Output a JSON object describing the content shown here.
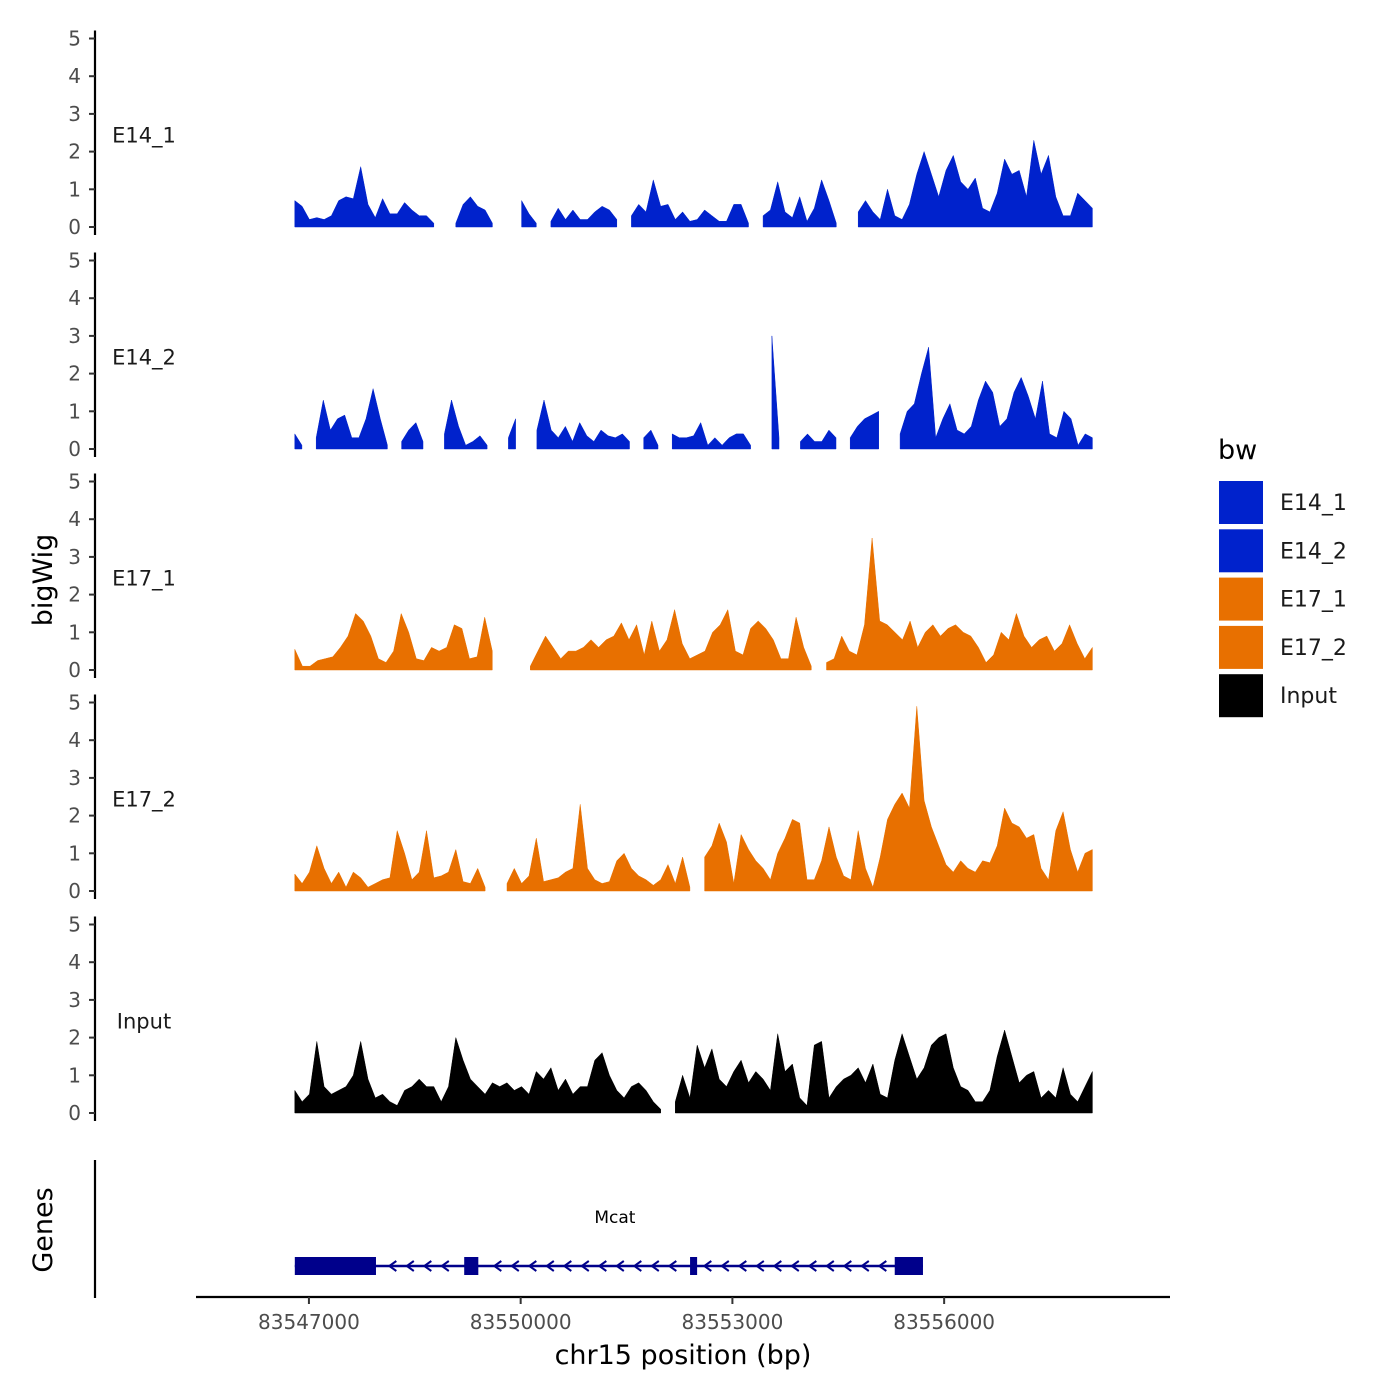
{
  "chart_data": {
    "type": "area",
    "title": "",
    "ylabel": "bigWig",
    "gene_panel_label": "Genes",
    "xlabel": "chr15 position (bp)",
    "chromosome": "chr15",
    "xlim": [
      83545400,
      83559200
    ],
    "x_ticks": [
      83547000,
      83550000,
      83553000,
      83556000
    ],
    "x_tick_labels": [
      "83547000",
      "83550000",
      "83553000",
      "83556000"
    ],
    "ylim": [
      0,
      5
    ],
    "y_ticks": [
      0,
      1,
      2,
      3,
      4,
      5
    ],
    "y_tick_labels": [
      "0",
      "1",
      "2",
      "3",
      "4",
      "5"
    ],
    "data_range": [
      83546800,
      83558100
    ],
    "legend": {
      "title": "bw",
      "position": "right",
      "entries": [
        {
          "name": "E14_1",
          "color": "#0022cc"
        },
        {
          "name": "E14_2",
          "color": "#0022cc"
        },
        {
          "name": "E17_1",
          "color": "#e87000"
        },
        {
          "name": "E17_2",
          "color": "#e87000"
        },
        {
          "name": "Input",
          "color": "#000000"
        }
      ]
    },
    "series": [
      {
        "name": "E14_1",
        "color": "#0022cc",
        "values": [
          0.7,
          0.55,
          0.2,
          0.25,
          0.2,
          0.3,
          0.7,
          0.8,
          0.75,
          1.6,
          0.6,
          0.25,
          0.75,
          0.35,
          0.35,
          0.65,
          0.45,
          0.3,
          0.3,
          0.1,
          null,
          null,
          0.1,
          0.6,
          0.8,
          0.55,
          0.45,
          0.1,
          null,
          null,
          null,
          0.7,
          0.35,
          0.1,
          null,
          0.15,
          0.5,
          0.2,
          0.45,
          0.2,
          0.2,
          0.4,
          0.55,
          0.45,
          0.2,
          null,
          0.3,
          0.6,
          0.4,
          1.25,
          0.55,
          0.6,
          0.2,
          0.4,
          0.15,
          0.2,
          0.45,
          0.3,
          0.15,
          0.15,
          0.6,
          0.6,
          0.1,
          null,
          0.3,
          0.45,
          1.2,
          0.4,
          0.25,
          0.8,
          0.15,
          0.5,
          1.25,
          0.7,
          0.1,
          null,
          null,
          0.4,
          0.7,
          0.4,
          0.2,
          1.0,
          0.3,
          0.2,
          0.6,
          1.4,
          2.0,
          1.4,
          0.8,
          1.5,
          1.9,
          1.2,
          1.0,
          1.3,
          0.5,
          0.4,
          0.9,
          1.8,
          1.4,
          1.5,
          0.8,
          2.3,
          1.4,
          1.9,
          0.8,
          0.3,
          0.3,
          0.9,
          0.7,
          0.5
        ]
      },
      {
        "name": "E14_2",
        "color": "#0022cc",
        "values": [
          0.4,
          0.1,
          null,
          0.3,
          1.3,
          0.5,
          0.8,
          0.9,
          0.3,
          0.3,
          0.8,
          1.6,
          0.8,
          0.1,
          null,
          0.2,
          0.5,
          0.7,
          0.2,
          null,
          null,
          0.4,
          1.3,
          0.6,
          0.1,
          0.2,
          0.35,
          0.1,
          null,
          null,
          0.3,
          0.8,
          null,
          null,
          0.5,
          1.3,
          0.5,
          0.3,
          0.6,
          0.2,
          0.7,
          0.35,
          0.2,
          0.5,
          0.35,
          0.3,
          0.4,
          0.2,
          null,
          0.3,
          0.5,
          0.1,
          null,
          0.4,
          0.3,
          0.3,
          0.35,
          0.7,
          0.1,
          0.3,
          0.1,
          0.3,
          0.4,
          0.4,
          0.1,
          null,
          null,
          3.0,
          0.3,
          null,
          null,
          0.2,
          0.4,
          0.2,
          0.2,
          0.5,
          0.3,
          null,
          0.3,
          0.6,
          0.8,
          0.9,
          1.0,
          null,
          null,
          0.4,
          1.0,
          1.2,
          2.0,
          2.7,
          0.3,
          0.8,
          1.2,
          0.5,
          0.4,
          0.6,
          1.3,
          1.8,
          1.5,
          0.6,
          0.8,
          1.5,
          1.9,
          1.4,
          0.8,
          1.8,
          0.4,
          0.3,
          1.0,
          0.8,
          0.1,
          0.4,
          0.3
        ]
      },
      {
        "name": "E17_1",
        "color": "#e87000",
        "values": [
          0.55,
          0.1,
          0.1,
          0.25,
          0.3,
          0.35,
          0.6,
          0.9,
          1.5,
          1.3,
          0.9,
          0.3,
          0.2,
          0.5,
          1.5,
          1.0,
          0.3,
          0.25,
          0.6,
          0.5,
          0.6,
          1.2,
          1.1,
          0.3,
          0.35,
          1.4,
          0.5,
          null,
          null,
          null,
          null,
          0.1,
          0.5,
          0.9,
          0.6,
          0.3,
          0.5,
          0.5,
          0.6,
          0.8,
          0.6,
          0.8,
          0.9,
          1.25,
          0.8,
          1.2,
          0.4,
          1.3,
          0.5,
          0.8,
          1.6,
          0.7,
          0.3,
          0.4,
          0.5,
          1.0,
          1.2,
          1.6,
          0.5,
          0.4,
          1.1,
          1.3,
          1.1,
          0.8,
          0.3,
          0.3,
          1.4,
          0.6,
          0.1,
          null,
          0.2,
          0.3,
          0.9,
          0.5,
          0.4,
          1.2,
          3.5,
          1.3,
          1.2,
          1.0,
          0.8,
          1.3,
          0.6,
          1.0,
          1.2,
          0.9,
          1.1,
          1.2,
          1.0,
          0.9,
          0.6,
          0.2,
          0.4,
          1.0,
          0.8,
          1.5,
          0.9,
          0.6,
          0.8,
          0.9,
          0.5,
          0.7,
          1.2,
          0.7,
          0.3,
          0.6
        ]
      },
      {
        "name": "E17_2",
        "color": "#e87000",
        "values": [
          0.45,
          0.2,
          0.5,
          1.2,
          0.6,
          0.2,
          0.5,
          0.1,
          0.5,
          0.35,
          0.1,
          0.2,
          0.3,
          0.35,
          1.6,
          1.0,
          0.3,
          0.5,
          1.6,
          0.35,
          0.4,
          0.5,
          1.1,
          0.25,
          0.2,
          0.6,
          0.1,
          null,
          null,
          0.2,
          0.6,
          0.2,
          0.4,
          1.4,
          0.25,
          0.3,
          0.35,
          0.5,
          0.6,
          2.3,
          0.6,
          0.3,
          0.2,
          0.25,
          0.8,
          1.0,
          0.6,
          0.4,
          0.3,
          0.15,
          0.3,
          0.7,
          0.2,
          0.9,
          0.1,
          null,
          0.9,
          1.2,
          1.8,
          1.3,
          0.2,
          1.5,
          1.1,
          0.8,
          0.6,
          0.3,
          1.0,
          1.4,
          1.9,
          1.8,
          0.3,
          0.3,
          0.8,
          1.7,
          0.9,
          0.4,
          0.3,
          1.6,
          0.6,
          0.1,
          0.9,
          1.9,
          2.3,
          2.6,
          2.2,
          4.9,
          2.4,
          1.7,
          1.2,
          0.7,
          0.5,
          0.8,
          0.6,
          0.5,
          0.8,
          0.75,
          1.2,
          2.2,
          1.8,
          1.7,
          1.4,
          1.5,
          0.6,
          0.3,
          1.6,
          2.1,
          1.1,
          0.5,
          1.0,
          1.1
        ]
      },
      {
        "name": "Input",
        "color": "#000000",
        "values": [
          0.6,
          0.3,
          0.5,
          1.9,
          0.7,
          0.5,
          0.6,
          0.7,
          1.0,
          1.9,
          0.9,
          0.4,
          0.5,
          0.3,
          0.2,
          0.6,
          0.7,
          0.9,
          0.7,
          0.7,
          0.3,
          0.7,
          2.0,
          1.4,
          0.9,
          0.7,
          0.5,
          0.8,
          0.7,
          0.8,
          0.6,
          0.7,
          0.5,
          1.1,
          0.9,
          1.2,
          0.6,
          0.9,
          0.5,
          0.7,
          0.7,
          1.4,
          1.6,
          1.0,
          0.6,
          0.4,
          0.7,
          0.8,
          0.6,
          0.3,
          0.1,
          null,
          0.3,
          1.0,
          0.4,
          1.8,
          1.2,
          1.7,
          0.9,
          0.7,
          1.1,
          1.4,
          0.8,
          1.1,
          0.9,
          0.6,
          2.1,
          1.1,
          1.3,
          0.4,
          0.2,
          1.8,
          1.9,
          0.4,
          0.7,
          0.9,
          1.0,
          1.2,
          0.8,
          1.3,
          0.5,
          0.4,
          1.4,
          2.1,
          1.5,
          0.9,
          1.2,
          1.8,
          2.0,
          2.1,
          1.2,
          0.7,
          0.6,
          0.3,
          0.3,
          0.6,
          1.5,
          2.2,
          1.5,
          0.8,
          1.0,
          1.1,
          0.4,
          0.6,
          0.4,
          1.2,
          0.5,
          0.3,
          0.7,
          1.1
        ]
      }
    ],
    "gene": {
      "name": "Mcat",
      "strand": "-",
      "start": 83546800,
      "end": 83555700,
      "color": "#00008b",
      "exons": [
        [
          83546800,
          83547950
        ],
        [
          83549200,
          83549400
        ],
        [
          83552400,
          83552500
        ],
        [
          83555300,
          83555700
        ]
      ]
    }
  }
}
